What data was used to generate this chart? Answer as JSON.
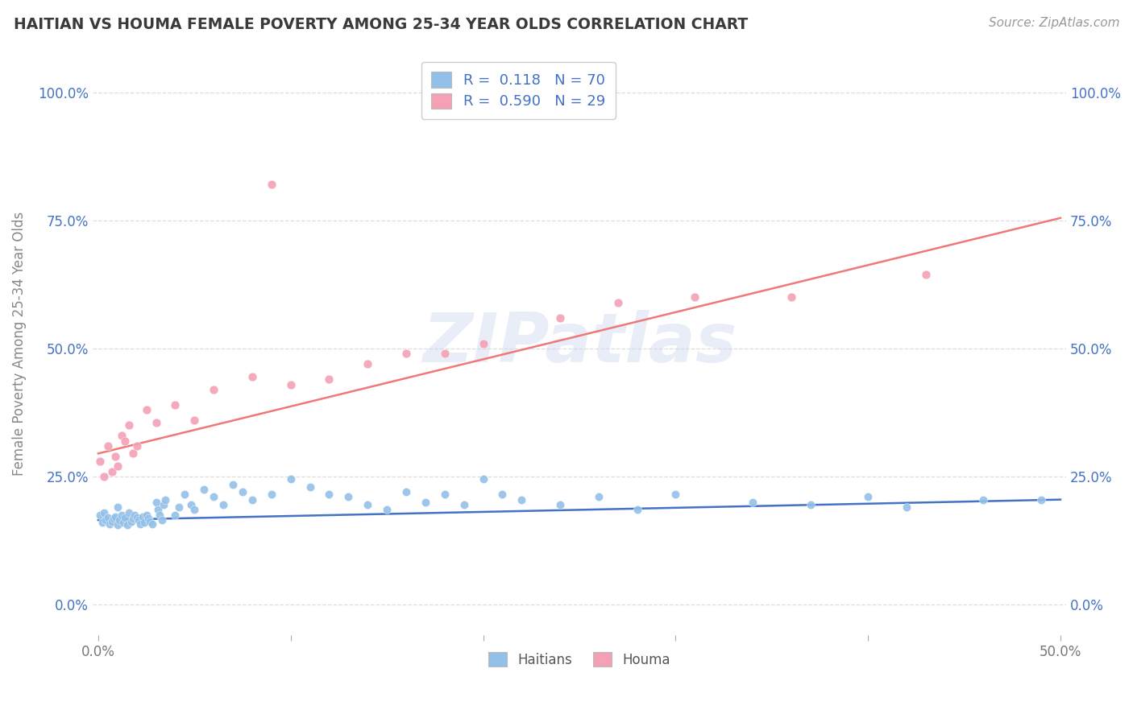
{
  "title": "HAITIAN VS HOUMA FEMALE POVERTY AMONG 25-34 YEAR OLDS CORRELATION CHART",
  "source": "Source: ZipAtlas.com",
  "ylabel": "Female Poverty Among 25-34 Year Olds",
  "xlim": [
    -0.003,
    0.503
  ],
  "ylim": [
    -0.06,
    1.08
  ],
  "xticks": [
    0.0,
    0.1,
    0.2,
    0.3,
    0.4,
    0.5
  ],
  "xticklabels": [
    "0.0%",
    "",
    "",
    "",
    "",
    "50.0%"
  ],
  "yticks": [
    0.0,
    0.25,
    0.5,
    0.75,
    1.0
  ],
  "yticklabels": [
    "0.0%",
    "25.0%",
    "50.0%",
    "75.0%",
    "100.0%"
  ],
  "haitians_color": "#92c0e8",
  "houma_color": "#f4a0b5",
  "haitians_line_color": "#4472c4",
  "houma_line_color": "#f07878",
  "watermark": "ZIPatlas",
  "legend_R_haitians": "0.118",
  "legend_N_haitians": "70",
  "legend_R_houma": "0.590",
  "legend_N_houma": "29",
  "grid_color": "#dddddd",
  "title_color": "#3a3a3a",
  "ylabel_color": "#888888",
  "source_color": "#999999",
  "haitians_x": [
    0.001,
    0.002,
    0.003,
    0.004,
    0.005,
    0.006,
    0.007,
    0.008,
    0.009,
    0.01,
    0.01,
    0.011,
    0.012,
    0.013,
    0.014,
    0.015,
    0.016,
    0.017,
    0.018,
    0.019,
    0.02,
    0.021,
    0.022,
    0.023,
    0.024,
    0.025,
    0.026,
    0.027,
    0.028,
    0.03,
    0.031,
    0.032,
    0.033,
    0.034,
    0.035,
    0.04,
    0.042,
    0.045,
    0.048,
    0.05,
    0.055,
    0.06,
    0.065,
    0.07,
    0.075,
    0.08,
    0.09,
    0.1,
    0.11,
    0.12,
    0.13,
    0.14,
    0.15,
    0.16,
    0.17,
    0.18,
    0.19,
    0.2,
    0.21,
    0.22,
    0.24,
    0.26,
    0.28,
    0.3,
    0.34,
    0.37,
    0.4,
    0.42,
    0.46,
    0.49
  ],
  "haitians_y": [
    0.175,
    0.16,
    0.18,
    0.165,
    0.17,
    0.158,
    0.162,
    0.168,
    0.172,
    0.155,
    0.19,
    0.165,
    0.175,
    0.16,
    0.17,
    0.155,
    0.18,
    0.162,
    0.168,
    0.175,
    0.17,
    0.165,
    0.158,
    0.172,
    0.16,
    0.175,
    0.168,
    0.162,
    0.158,
    0.2,
    0.185,
    0.175,
    0.165,
    0.195,
    0.205,
    0.175,
    0.19,
    0.215,
    0.195,
    0.185,
    0.225,
    0.21,
    0.195,
    0.235,
    0.22,
    0.205,
    0.215,
    0.245,
    0.23,
    0.215,
    0.21,
    0.195,
    0.185,
    0.22,
    0.2,
    0.215,
    0.195,
    0.245,
    0.215,
    0.205,
    0.195,
    0.21,
    0.185,
    0.215,
    0.2,
    0.195,
    0.21,
    0.19,
    0.205,
    0.205
  ],
  "houma_x": [
    0.001,
    0.003,
    0.005,
    0.007,
    0.009,
    0.01,
    0.012,
    0.014,
    0.016,
    0.018,
    0.02,
    0.025,
    0.03,
    0.04,
    0.05,
    0.06,
    0.08,
    0.09,
    0.1,
    0.12,
    0.14,
    0.16,
    0.18,
    0.2,
    0.24,
    0.27,
    0.31,
    0.36,
    0.43
  ],
  "houma_y": [
    0.28,
    0.25,
    0.31,
    0.26,
    0.29,
    0.27,
    0.33,
    0.32,
    0.35,
    0.295,
    0.31,
    0.38,
    0.355,
    0.39,
    0.36,
    0.42,
    0.445,
    0.82,
    0.43,
    0.44,
    0.47,
    0.49,
    0.49,
    0.51,
    0.56,
    0.59,
    0.6,
    0.6,
    0.645
  ],
  "haitian_line_x0": 0.0,
  "haitian_line_y0": 0.165,
  "haitian_line_x1": 0.5,
  "haitian_line_y1": 0.205,
  "houma_line_x0": 0.0,
  "houma_line_y0": 0.295,
  "houma_line_x1": 0.5,
  "houma_line_y1": 0.755
}
